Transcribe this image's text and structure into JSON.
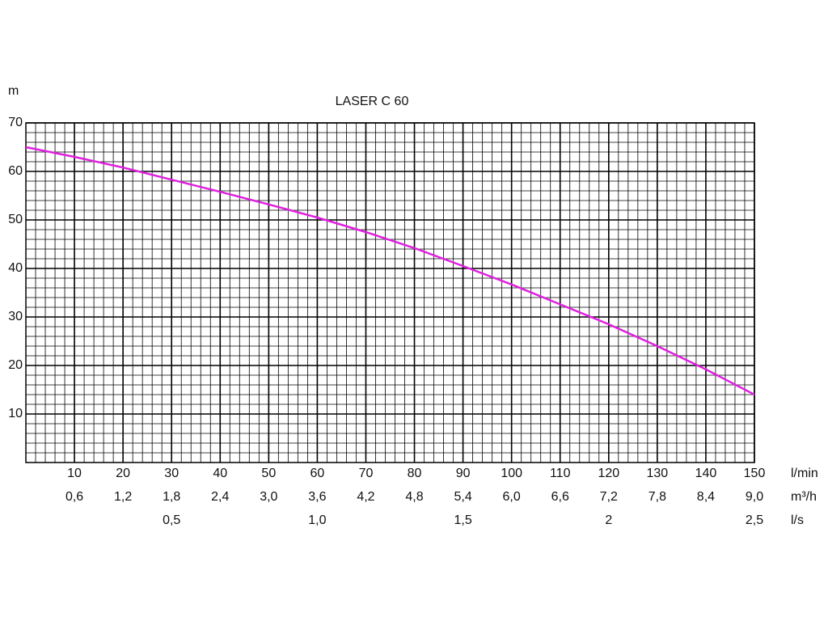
{
  "chart_data": {
    "type": "line",
    "title": "LASER C 60",
    "ylabel": "m",
    "xlabel": "l/min",
    "x2label": "m³/h",
    "x3label": "l/s",
    "x": [
      0,
      10,
      20,
      30,
      40,
      50,
      60,
      70,
      80,
      90,
      100,
      110,
      120,
      130,
      140,
      150
    ],
    "series": [
      {
        "name": "LASER C 60",
        "color": "#e020e0",
        "values": [
          65,
          63,
          60.8,
          58.3,
          55.8,
          53.2,
          50.5,
          47.5,
          44.2,
          40.5,
          36.7,
          32.6,
          28.5,
          24,
          19.2,
          14
        ]
      }
    ],
    "xlim": [
      0,
      150
    ],
    "ylim": [
      0,
      70
    ],
    "xticks": [
      10,
      20,
      30,
      40,
      50,
      60,
      70,
      80,
      90,
      100,
      110,
      120,
      130,
      140,
      150
    ],
    "yticks": [
      10,
      20,
      30,
      40,
      50,
      60,
      70
    ],
    "x2lim": [
      0,
      9.0
    ],
    "x2ticks": [
      {
        "value": 0.6,
        "label": "0,6"
      },
      {
        "value": 1.2,
        "label": "1,2"
      },
      {
        "value": 1.8,
        "label": "1,8"
      },
      {
        "value": 2.4,
        "label": "2,4"
      },
      {
        "value": 3.0,
        "label": "3,0"
      },
      {
        "value": 3.6,
        "label": "3,6"
      },
      {
        "value": 4.2,
        "label": "4,2"
      },
      {
        "value": 4.8,
        "label": "4,8"
      },
      {
        "value": 5.4,
        "label": "5,4"
      },
      {
        "value": 6.0,
        "label": "6,0"
      },
      {
        "value": 6.6,
        "label": "6,6"
      },
      {
        "value": 7.2,
        "label": "7,2"
      },
      {
        "value": 7.8,
        "label": "7,8"
      },
      {
        "value": 8.4,
        "label": "8,4"
      },
      {
        "value": 9.0,
        "label": "9,0"
      }
    ],
    "x3lim": [
      0,
      2.5
    ],
    "x3ticks": [
      {
        "value": 0.5,
        "label": "0,5"
      },
      {
        "value": 1.0,
        "label": "1,0"
      },
      {
        "value": 1.5,
        "label": "1,5"
      },
      2,
      {
        "value": 2.5,
        "label": "2,5"
      }
    ],
    "grid": true,
    "minor_grid_per_tick": 5
  }
}
